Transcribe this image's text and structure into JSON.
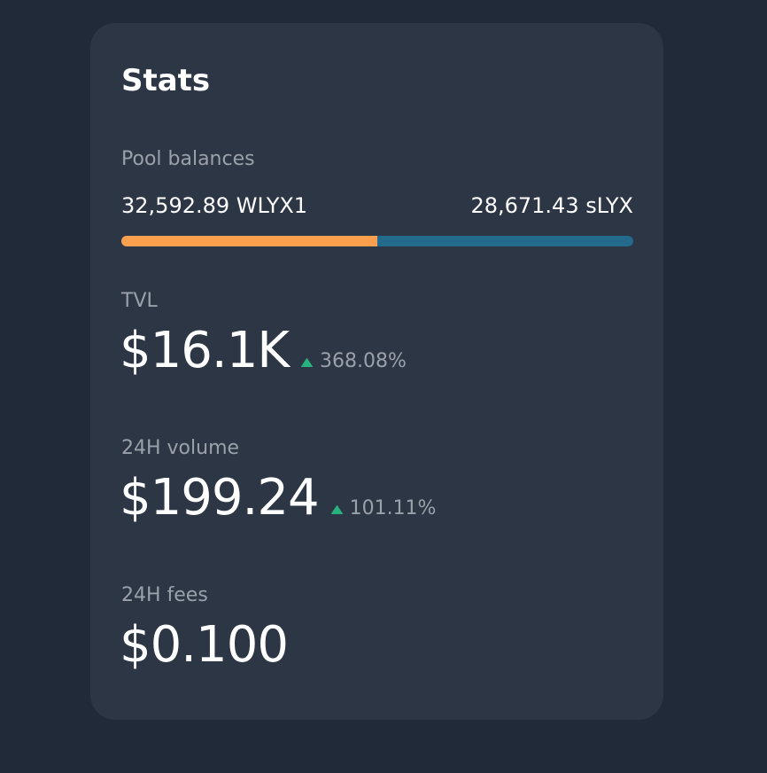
{
  "title": "Stats",
  "pool_balances": {
    "label": "Pool balances",
    "left": "32,592.89 WLYX1",
    "right": "28,671.43 sLYX",
    "bar": [
      {
        "color": "#fba04f",
        "value": 50
      },
      {
        "color": "#236a8d",
        "value": 50
      }
    ]
  },
  "stats": [
    {
      "label": "TVL",
      "value": "$16.1K",
      "change": "368.08%"
    },
    {
      "label": "24H volume",
      "value": "$199.24",
      "change": "101.11%"
    },
    {
      "label": "24H fees",
      "value": "$0.100"
    }
  ]
}
